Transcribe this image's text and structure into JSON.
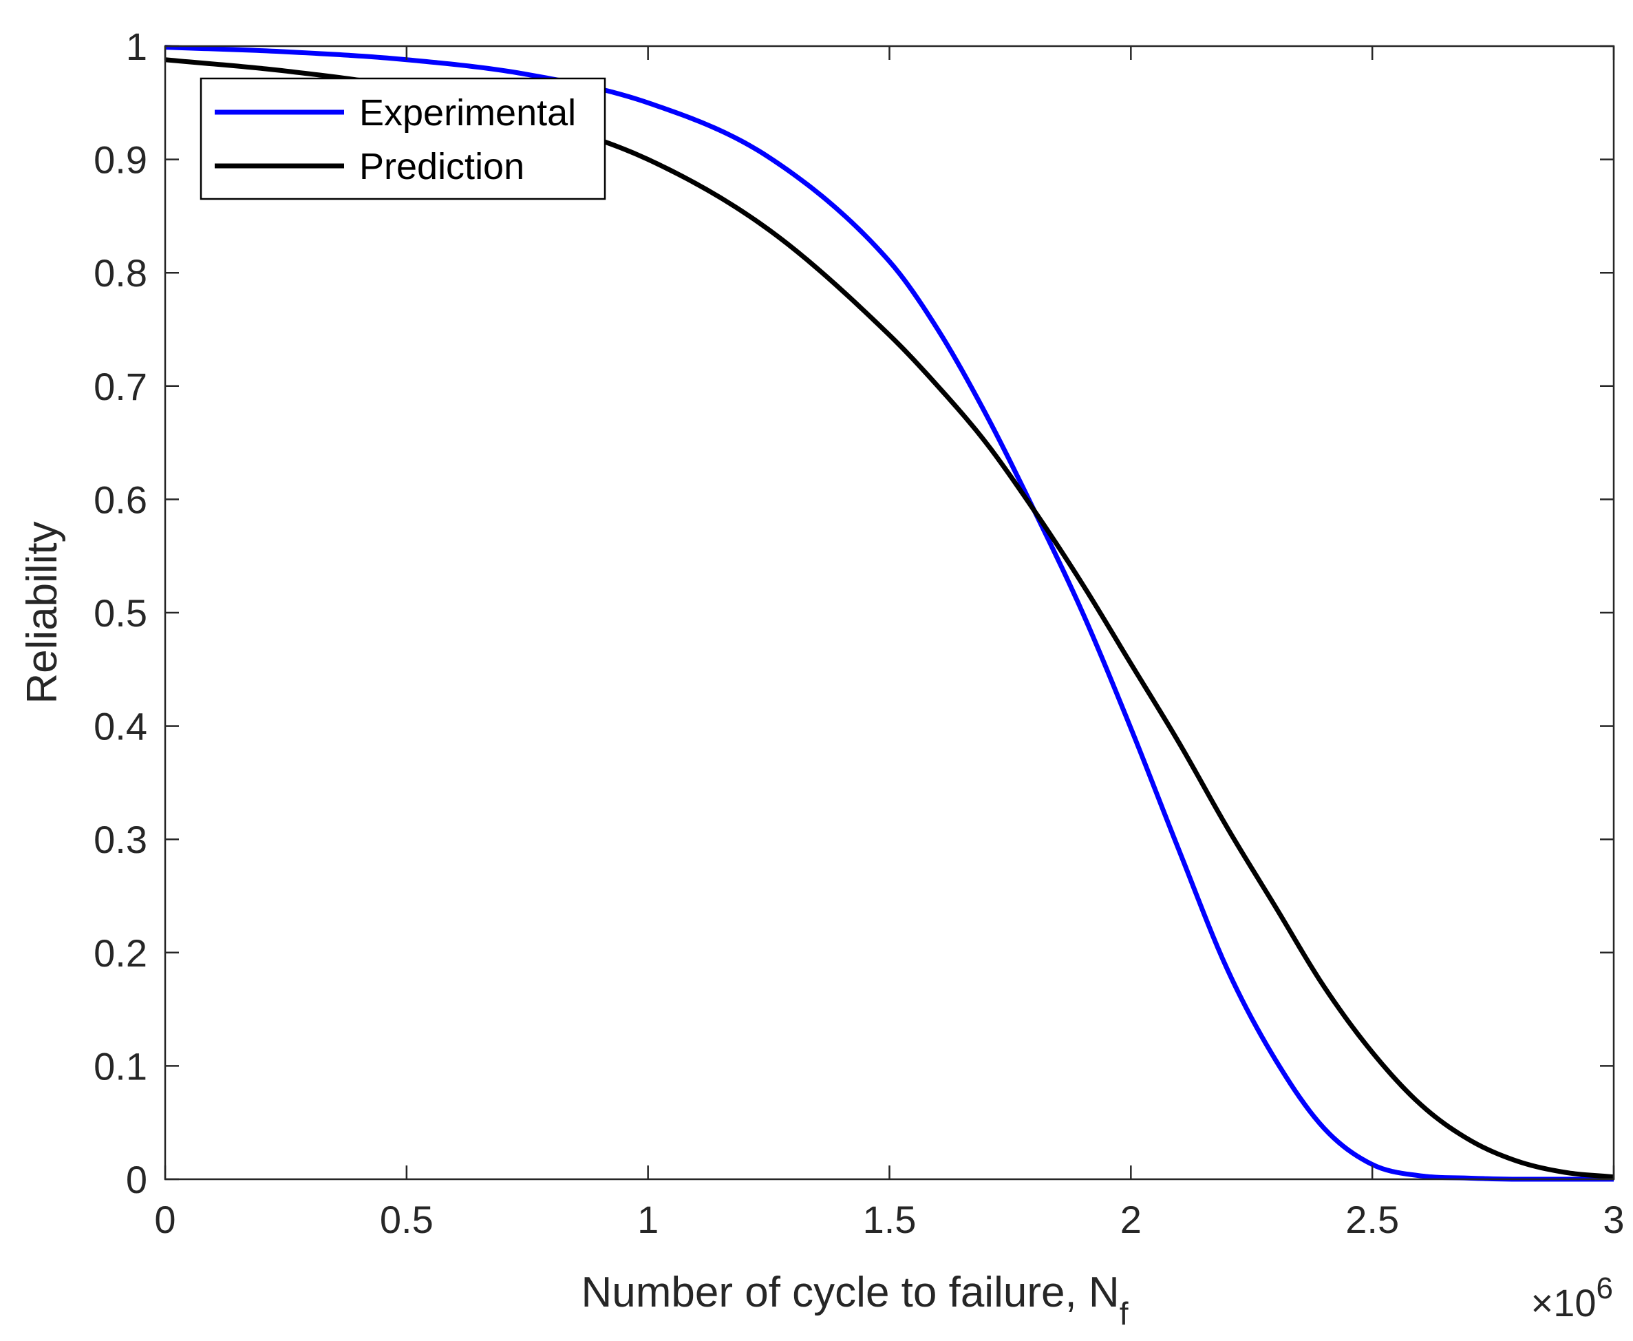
{
  "chart_data": {
    "type": "line",
    "title": "",
    "xlabel": "Number of cycle to failure, N",
    "xlabel_subscript": "f",
    "ylabel": "Reliability",
    "x_exponent_base": "×10",
    "x_exponent_power": "6",
    "xlim": [
      0,
      3
    ],
    "ylim": [
      0,
      1
    ],
    "xticks": [
      0,
      0.5,
      1,
      1.5,
      2,
      2.5,
      3
    ],
    "xtick_labels": [
      "0",
      "0.5",
      "1",
      "1.5",
      "2",
      "2.5",
      "3"
    ],
    "yticks": [
      0,
      0.1,
      0.2,
      0.3,
      0.4,
      0.5,
      0.6,
      0.7,
      0.8,
      0.9,
      1
    ],
    "ytick_labels": [
      "0",
      "0.1",
      "0.2",
      "0.3",
      "0.4",
      "0.5",
      "0.6",
      "0.7",
      "0.8",
      "0.9",
      "1"
    ],
    "grid": false,
    "legend_position": "top-left",
    "series": [
      {
        "name": "Experimental",
        "color": "#0000ff",
        "x": [
          0,
          0.25,
          0.5,
          0.75,
          1.0,
          1.25,
          1.5,
          1.6,
          1.7,
          1.8,
          1.9,
          2.0,
          2.1,
          2.2,
          2.3,
          2.4,
          2.5,
          2.6,
          2.7,
          2.8,
          3.0
        ],
        "values": [
          0.999,
          0.995,
          0.988,
          0.975,
          0.95,
          0.902,
          0.81,
          0.75,
          0.675,
          0.59,
          0.5,
          0.398,
          0.29,
          0.185,
          0.105,
          0.045,
          0.013,
          0.003,
          0.001,
          0.0,
          0.0
        ]
      },
      {
        "name": "Prediction",
        "color": "#000000",
        "x": [
          0,
          0.25,
          0.5,
          0.75,
          1.0,
          1.25,
          1.5,
          1.6,
          1.7,
          1.8,
          1.9,
          2.0,
          2.1,
          2.2,
          2.3,
          2.4,
          2.5,
          2.6,
          2.7,
          2.8,
          2.9,
          3.0
        ],
        "values": [
          0.988,
          0.978,
          0.963,
          0.937,
          0.9,
          0.838,
          0.745,
          0.7,
          0.65,
          0.59,
          0.525,
          0.455,
          0.385,
          0.31,
          0.24,
          0.17,
          0.112,
          0.066,
          0.035,
          0.016,
          0.006,
          0.002
        ]
      }
    ]
  }
}
